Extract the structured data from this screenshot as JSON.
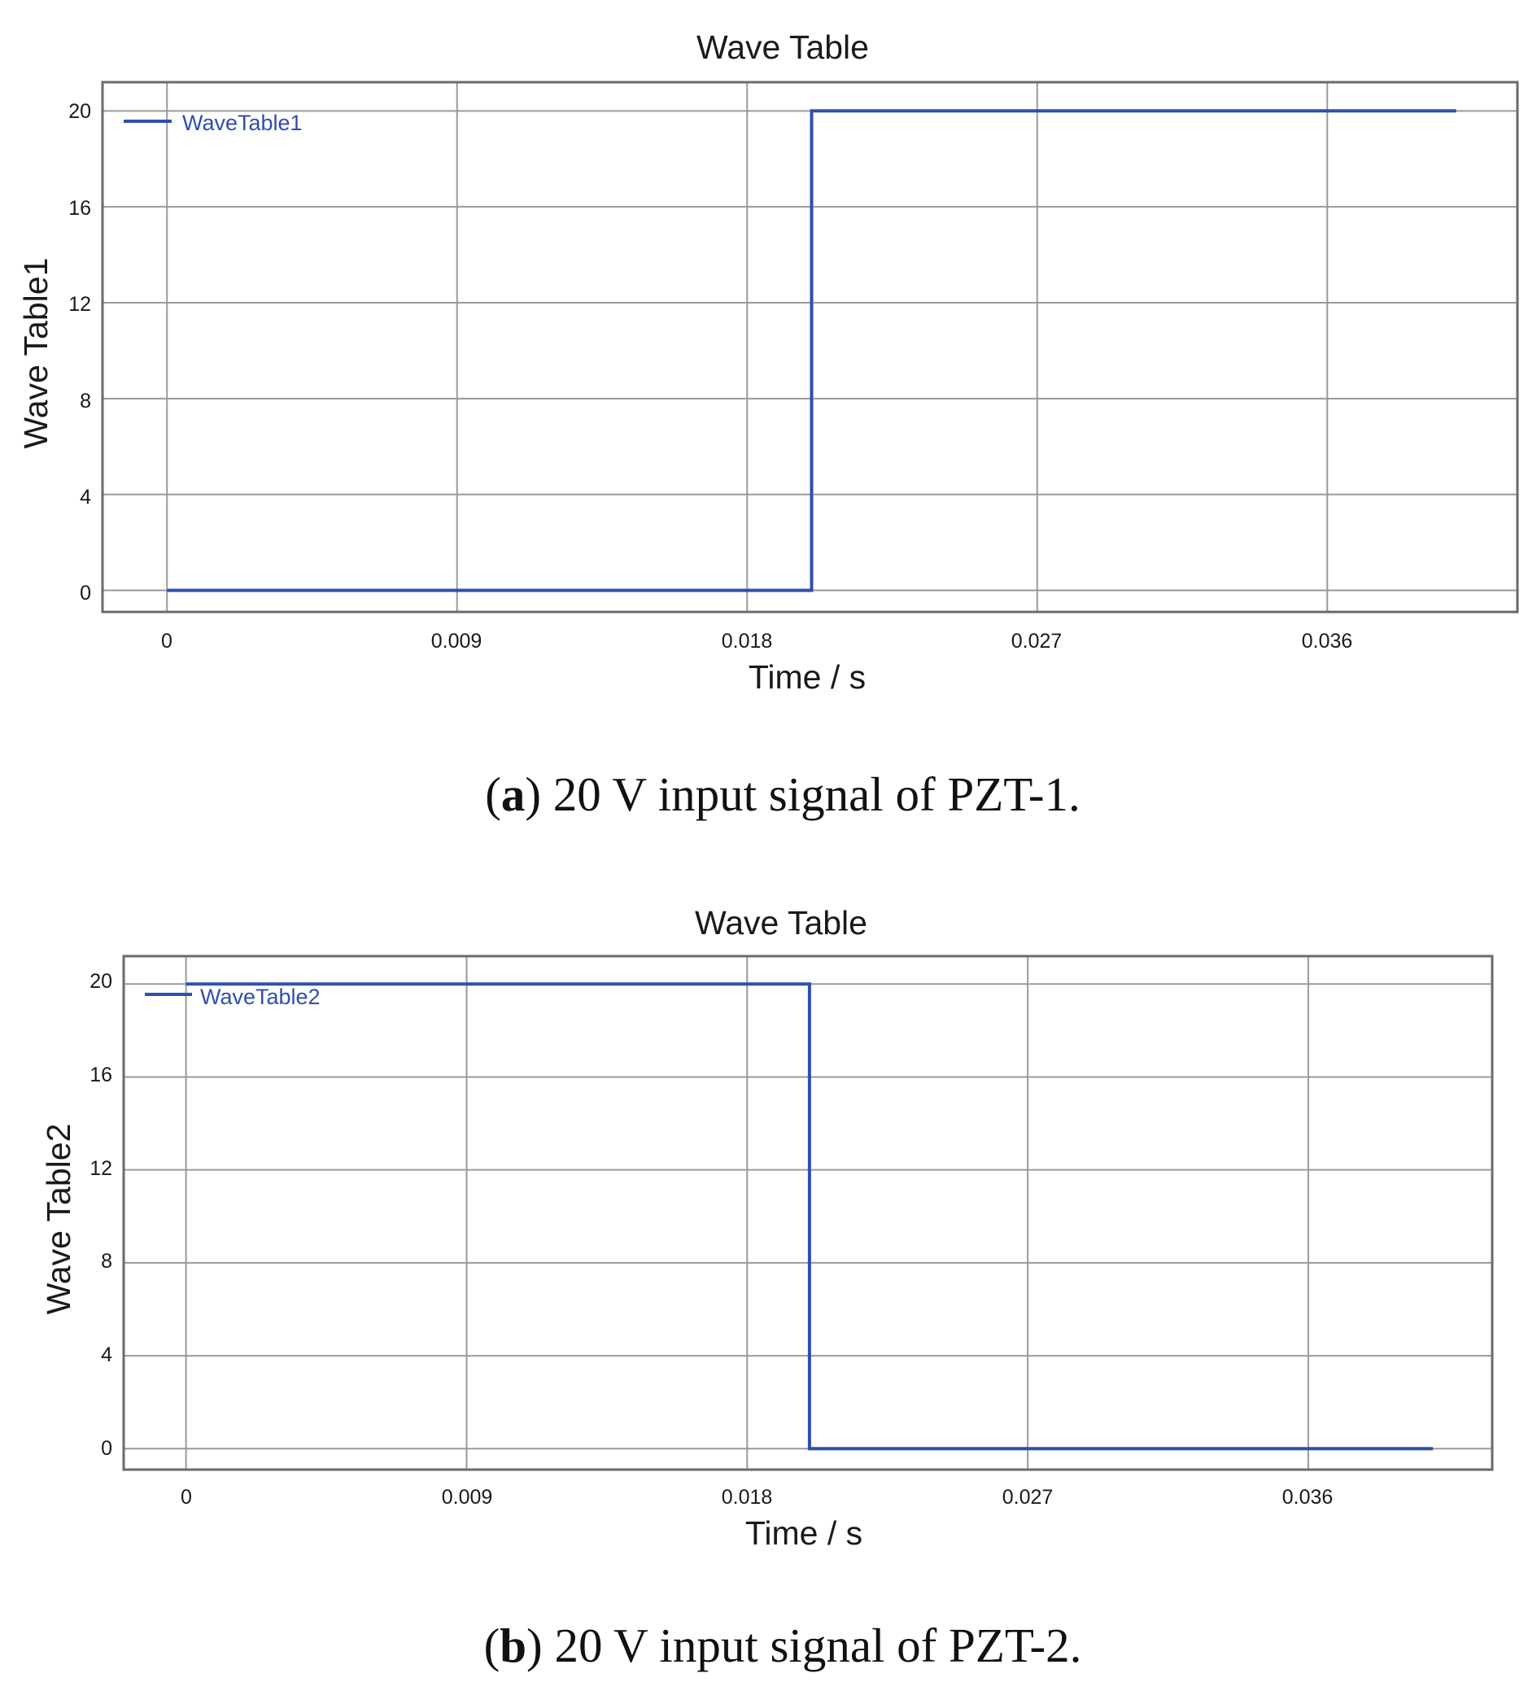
{
  "colors": {
    "series": "#2f4fae",
    "grid": "#9a9a9a",
    "frame": "#6a6a6a",
    "text": "#1a1a1a"
  },
  "chart_data": [
    {
      "type": "line",
      "title": "Wave Table",
      "xlabel": "Time / s",
      "ylabel": "Wave Table1",
      "xticks": [
        "0",
        "0.009",
        "0.018",
        "0.027",
        "0.036"
      ],
      "yticks": [
        "0",
        "4",
        "8",
        "12",
        "16",
        "20"
      ],
      "xlim": [
        -0.002,
        0.0419
      ],
      "ylim": [
        -0.9,
        21.2
      ],
      "grid": true,
      "legend_position": "top-left",
      "series": [
        {
          "name": "WaveTable1",
          "x": [
            0,
            0.02,
            0.02,
            0.04
          ],
          "y": [
            0,
            0,
            20,
            20
          ]
        }
      ],
      "caption": {
        "letter": "a",
        "text": "20 V input signal of PZT-1."
      }
    },
    {
      "type": "line",
      "title": "Wave Table",
      "xlabel": "Time / s",
      "ylabel": "Wave Table2",
      "xticks": [
        "0",
        "0.009",
        "0.018",
        "0.027",
        "0.036"
      ],
      "yticks": [
        "0",
        "4",
        "8",
        "12",
        "16",
        "20"
      ],
      "xlim": [
        -0.002,
        0.0419
      ],
      "ylim": [
        -0.9,
        21.2
      ],
      "grid": true,
      "legend_position": "top-left",
      "series": [
        {
          "name": "WaveTable2",
          "x": [
            0,
            0.02,
            0.02,
            0.04
          ],
          "y": [
            20,
            20,
            0,
            0
          ]
        }
      ],
      "caption": {
        "letter": "b",
        "text": "20 V input signal of PZT-2."
      }
    }
  ]
}
